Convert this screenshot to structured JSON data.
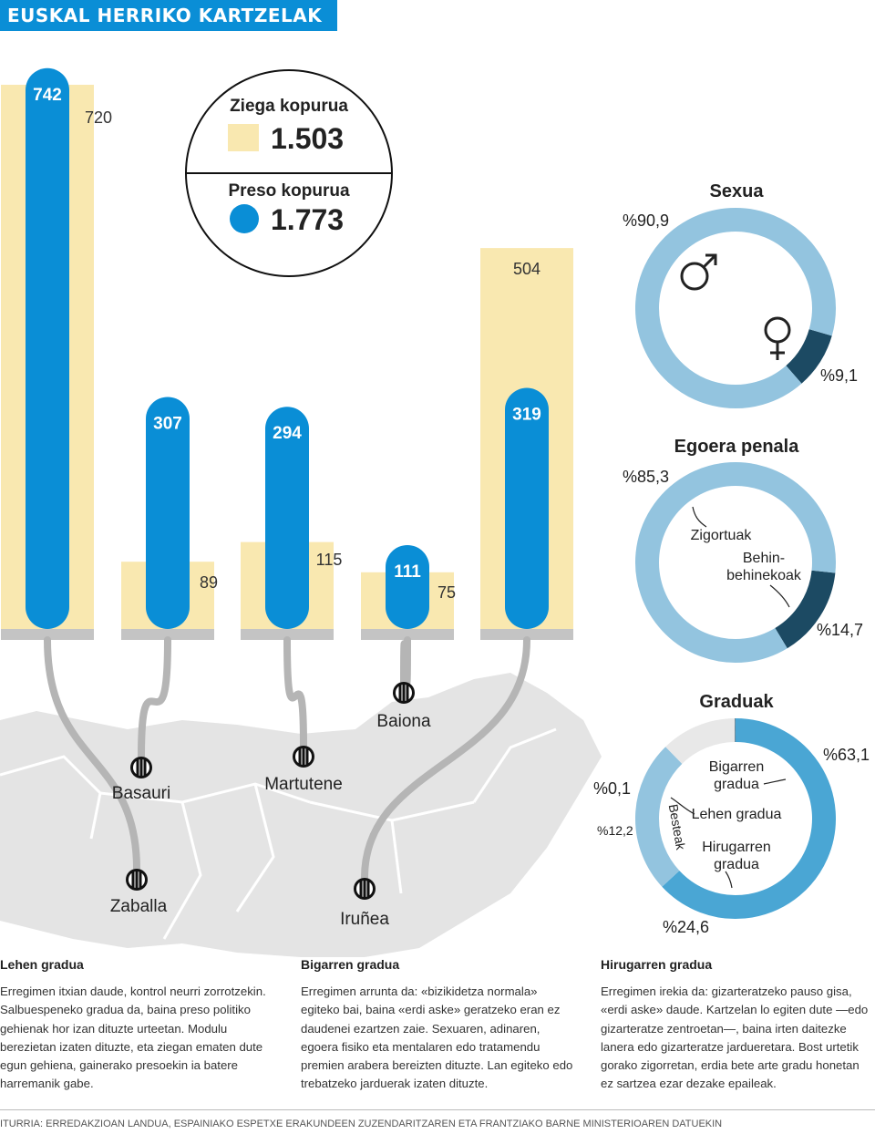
{
  "header": {
    "title": "EUSKAL HERRIKO KARTZELAK"
  },
  "legend": {
    "cells_label": "Ziega kopurua",
    "cells_total": "1.503",
    "prisoners_label": "Preso kopurua",
    "prisoners_total": "1.773"
  },
  "colors": {
    "cells": "#f9e8b0",
    "prisoners": "#0a8ed6",
    "base": "#c4c4c4",
    "map": "#e4e4e4",
    "ring_light": "#93c4df",
    "ring_dark": "#1c4a63",
    "ring_mid": "#4aa6d4",
    "ring_grey": "#e8e8e8"
  },
  "chart_data": [
    {
      "type": "bar",
      "categories": [
        "Zaballa",
        "Basauri",
        "Martutene",
        "Baiona",
        "Iruñea"
      ],
      "series": [
        {
          "name": "Ziega kopurua",
          "values": [
            720,
            89,
            115,
            75,
            504
          ]
        },
        {
          "name": "Preso kopurua",
          "values": [
            742,
            307,
            294,
            111,
            319
          ]
        }
      ],
      "ylim": [
        0,
        800
      ]
    },
    {
      "type": "pie",
      "title": "Sexua",
      "slices": [
        {
          "label": "%90,9",
          "value": 90.9,
          "icon": "male-symbol-icon"
        },
        {
          "label": "%9,1",
          "value": 9.1,
          "icon": "female-symbol-icon"
        }
      ]
    },
    {
      "type": "pie",
      "title": "Egoera penala",
      "slices": [
        {
          "label": "%85,3",
          "value": 85.3,
          "name": "Zigortuak"
        },
        {
          "label": "%14,7",
          "value": 14.7,
          "name_line1": "Behin-",
          "name_line2": "behinekoak"
        }
      ]
    },
    {
      "type": "pie",
      "title": "Graduak",
      "slices": [
        {
          "label": "%63,1",
          "value": 63.1,
          "name_line1": "Bigarren",
          "name_line2": "gradua"
        },
        {
          "label": "%24,6",
          "value": 24.6,
          "name_line1": "Hirugarren",
          "name_line2": "gradua"
        },
        {
          "label": "%12,2",
          "value": 12.2,
          "name": "Besteak"
        },
        {
          "label": "%0,1",
          "value": 0.1,
          "name": "Lehen gradua"
        }
      ]
    }
  ],
  "columns": [
    {
      "title": "Lehen gradua",
      "text": "Erregimen itxian daude, kontrol neurri zorrotzekin. Salbuespeneko gradua da, baina preso politiko gehienak hor izan dituzte urteetan. Modulu berezietan izaten dituzte, eta ziegan ematen dute egun gehiena, gainerako presoekin ia batere harremanik gabe."
    },
    {
      "title": "Bigarren gradua",
      "text": "Erregimen arrunta da: «bizikidetza normala» egiteko bai, baina «erdi aske» geratzeko eran ez daudenei ezartzen zaie. Sexuaren, adinaren, egoera fisiko eta mentalaren edo tratamendu premien arabera bereizten dituzte. Lan egiteko edo trebatzeko jarduerak izaten dituzte."
    },
    {
      "title": "Hirugarren gradua",
      "text": "Erregimen irekia da: gizarteratzeko pauso gisa, «erdi aske» daude. Kartzelan lo egiten dute —edo gizarteratze zentroetan—, baina irten daitezke lanera edo gizarteratze jardueretara. Bost urtetik gorako zigorretan, erdia bete arte gradu honetan ez sartzea ezar dezake epaileak."
    }
  ],
  "source": "ITURRIA: ERREDAKZIOAN LANDUA, ESPAINIAKO ESPETXE ERAKUNDEEN ZUZENDARITZAREN ETA FRANTZIAKO BARNE MINISTERIOAREN DATUEKIN"
}
